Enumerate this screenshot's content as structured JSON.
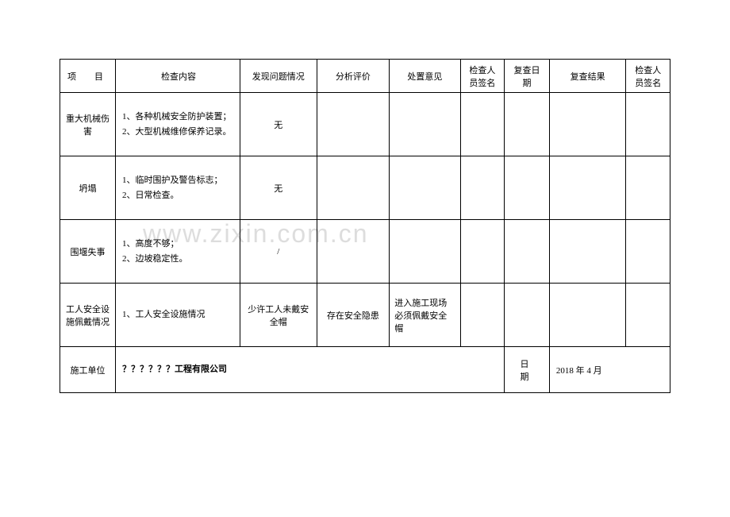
{
  "watermark": "www.zixin.com.cn",
  "table": {
    "headers": {
      "project": "项　目",
      "content": "检查内容",
      "problem": "发现问题情况",
      "analysis": "分析评价",
      "disposition": "处置意见",
      "inspector": "检查人员签名",
      "review_date": "复查日期",
      "review_result": "复查结果",
      "inspector2": "检查人员签名"
    },
    "rows": [
      {
        "project": "重大机械伤害",
        "content": "1、各种机械安全防护装置；\n2、大型机械维修保养记录。",
        "problem": "无",
        "analysis": "",
        "disposition": "",
        "inspector": "",
        "review_date": "",
        "review_result": "",
        "inspector2": ""
      },
      {
        "project": "坍塌",
        "content": "1、临时围护及警告标志；\n2、日常检查。",
        "problem": "无",
        "analysis": "",
        "disposition": "",
        "inspector": "",
        "review_date": "",
        "review_result": "",
        "inspector2": ""
      },
      {
        "project": "围堰失事",
        "content": "1、高度不够；\n2、边坡稳定性。",
        "problem": "/",
        "analysis": "",
        "disposition": "",
        "inspector": "",
        "review_date": "",
        "review_result": "",
        "inspector2": ""
      },
      {
        "project": "工人安全设施佩戴情况",
        "content": "1、工人安全设施情况",
        "problem": "少许工人未戴安全帽",
        "analysis": "存在安全隐患",
        "disposition": "进入施工现场必须佩戴安全帽",
        "inspector": "",
        "review_date": "",
        "review_result": "",
        "inspector2": ""
      }
    ],
    "footer": {
      "construction_unit_label": "施工单位",
      "construction_unit_value": "？？？？？？工程有限公司",
      "date_label": "日　期",
      "date_value": "2018 年 4 月"
    }
  },
  "styling": {
    "border_color": "#000000",
    "text_color": "#000000",
    "watermark_color": "#dddddd",
    "background_color": "#ffffff",
    "font_size_body": 11,
    "font_size_watermark": 32,
    "header_row_height": 42,
    "data_row_height": 80,
    "footer_row_height": 58
  }
}
